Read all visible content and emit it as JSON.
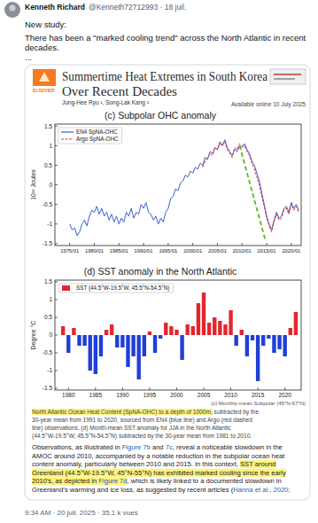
{
  "tweet": {
    "author": "Kenneth Richard",
    "handle": "@Kenneth72712993 · 18 juil.",
    "text": [
      "New study:",
      "There has been a \"marked cooling trend\" across the North Atlantic in recent",
      "decades.",
      "..."
    ],
    "footer": "9:34 AM · 20 juil. 2025 · 35,1 k vues"
  },
  "paper": {
    "publisher": "ELSEVIER",
    "title_lines": [
      "Summertime Heat Extremes in South Korea",
      "Over Recent Decades"
    ],
    "authors": "Jung-Hee Ryu ¹, Song-Lak Kang ²",
    "available": "Available online 10 July 2025",
    "figure_note": "(c) Monthly-mean Subpolar (45°N-67°N)",
    "caption": [
      [
        {
          "text": "North Atlantic Ocean Heat Content (SpNA-OHC) to a depth of 1000m,",
          "style": "highlight"
        },
        " subtracted by the"
      ],
      [
        "30-year mean from 1991 to 2020, sourced from EN4 (blue line) and Argo (red dashed"
      ],
      [
        "line) observations. (d) Month-mean SST anomaly for JJA in the North Atlantic"
      ],
      [
        "(44.5°W-19.5°W; 45.5°N-54.5°N) subtracted by the 30-year mean from 1981 to 2010."
      ]
    ],
    "body": [
      [
        "Observations, as illustrated in ",
        {
          "text": "Figure 7b",
          "style": "link"
        },
        " and ",
        {
          "text": "7c",
          "style": "link"
        },
        ", reveal a noticeable slowdown in the"
      ],
      [
        "AMOC around 2010, accompanied by a notable reduction in the subpolar ocean heat"
      ],
      [
        "content anomaly, particularly between 2010 and 2015. In this context, ",
        {
          "text": "SST around",
          "style": "highlight"
        }
      ],
      [
        {
          "text": "Greenland (44.5°W-19.5°W, 45°N-55°N) has exhibited marked cooling since the early",
          "style": "highlight"
        }
      ],
      [
        {
          "text": "2010's, as depicted in ",
          "style": "highlight"
        },
        {
          "text": "Figure 7d",
          "style": "highlight-link"
        },
        ", which is likely linked to a documented slowdown in"
      ],
      [
        "Greenland's warming and ice loss, as suggested by recent articles (",
        {
          "text": "Hanna et al., 2020;",
          "style": "link"
        }
      ]
    ]
  },
  "chart_data": [
    {
      "type": "line",
      "title": "(c) Subpolar OHC anomaly",
      "ylabel": "10²² Joules",
      "xlim": [
        1972,
        2022
      ],
      "ylim": [
        -1.55,
        1.55
      ],
      "xticks": [
        {
          "value": 1975,
          "label": "1975/01"
        },
        {
          "value": 1980,
          "label": "1980/01"
        },
        {
          "value": 1985,
          "label": "1985/01"
        },
        {
          "value": 1990,
          "label": "1990/01"
        },
        {
          "value": 1995,
          "label": "1995/01"
        },
        {
          "value": 2000,
          "label": "2000/01"
        },
        {
          "value": 2005,
          "label": "2005/01"
        },
        {
          "value": 2010,
          "label": "2010/01"
        },
        {
          "value": 2015,
          "label": "2015/01"
        },
        {
          "value": 2020,
          "label": "2020/01"
        }
      ],
      "yticks": [
        1.5,
        1,
        0.5,
        0,
        -0.5,
        -1,
        -1.5
      ],
      "grid": false,
      "legend": "upper left",
      "series": [
        {
          "name": "EN4 SpNA-OHC",
          "color": "#3b5fd0",
          "line_style": "solid",
          "x": [
            1975,
            1975.5,
            1976,
            1976.5,
            1977,
            1977.5,
            1978,
            1978.5,
            1979,
            1979.5,
            1980,
            1980.5,
            1981,
            1981.5,
            1982,
            1982.5,
            1983,
            1983.5,
            1984,
            1984.5,
            1985,
            1985.5,
            1986,
            1986.5,
            1987,
            1987.5,
            1988,
            1988.5,
            1989,
            1989.5,
            1990,
            1990.5,
            1991,
            1991.5,
            1992,
            1992.5,
            1993,
            1993.5,
            1994,
            1994.5,
            1995,
            1995.5,
            1996,
            1996.5,
            1997,
            1997.5,
            1998,
            1998.5,
            1999,
            1999.5,
            2000,
            2000.5,
            2001,
            2001.5,
            2002,
            2002.5,
            2003,
            2003.5,
            2004,
            2004.5,
            2005,
            2005.5,
            2006,
            2006.5,
            2007,
            2007.5,
            2008,
            2008.5,
            2009,
            2009.5,
            2010,
            2010.5,
            2011,
            2011.5,
            2012,
            2012.5,
            2013,
            2013.5,
            2014,
            2014.5,
            2015,
            2015.5,
            2016,
            2016.5,
            2017,
            2017.5,
            2018,
            2018.5,
            2019,
            2019.5,
            2020,
            2020.5,
            2021,
            2021.5
          ],
          "values": [
            -1.0,
            -1.15,
            -1.1,
            -1.3,
            -1.2,
            -1.0,
            -0.9,
            -1.05,
            -0.8,
            -0.65,
            -0.7,
            -0.55,
            -0.75,
            -0.6,
            -0.8,
            -0.7,
            -0.9,
            -0.75,
            -0.95,
            -0.8,
            -1.0,
            -0.85,
            -0.95,
            -0.7,
            -0.8,
            -0.6,
            -0.85,
            -0.7,
            -0.75,
            -0.5,
            -0.6,
            -0.45,
            -0.7,
            -0.75,
            -0.9,
            -0.8,
            -1.0,
            -0.85,
            -0.95,
            -0.7,
            -0.6,
            -0.35,
            -0.3,
            -0.1,
            -0.15,
            0.05,
            0.1,
            0.25,
            0.2,
            0.35,
            0.3,
            0.45,
            0.4,
            0.55,
            0.5,
            0.7,
            0.65,
            0.85,
            0.8,
            0.95,
            0.9,
            1.1,
            1.0,
            1.15,
            0.95,
            0.85,
            0.75,
            0.9,
            0.85,
            1.0,
            0.95,
            1.05,
            0.9,
            0.8,
            0.6,
            0.5,
            0.3,
            0.1,
            -0.2,
            -0.5,
            -0.8,
            -1.0,
            -1.15,
            -0.9,
            -0.7,
            -0.85,
            -0.8,
            -0.6,
            -0.55,
            -0.7,
            -0.45,
            -0.6,
            -0.5,
            -0.65
          ]
        },
        {
          "name": "Argo SpNA-OHC",
          "color": "#e0303a",
          "line_style": "dashed",
          "x": [
            2002,
            2002.5,
            2003,
            2003.5,
            2004,
            2004.5,
            2005,
            2005.5,
            2006,
            2006.5,
            2007,
            2007.5,
            2008,
            2008.5,
            2009,
            2009.5,
            2010,
            2010.5,
            2011,
            2011.5,
            2012,
            2012.5,
            2013,
            2013.5,
            2014,
            2014.5,
            2015,
            2015.5,
            2016,
            2016.5,
            2017,
            2017.5,
            2018,
            2018.5,
            2019,
            2019.5,
            2020,
            2020.5,
            2021,
            2021.5
          ],
          "values": [
            0.45,
            0.6,
            0.7,
            0.8,
            0.75,
            0.95,
            0.9,
            1.05,
            1.0,
            1.1,
            0.9,
            0.8,
            0.7,
            0.95,
            0.9,
            1.05,
            1.0,
            1.0,
            0.85,
            0.75,
            0.55,
            0.4,
            0.2,
            0.0,
            -0.3,
            -0.55,
            -0.85,
            -1.05,
            -1.2,
            -0.95,
            -0.75,
            -0.9,
            -0.85,
            -0.65,
            -0.6,
            -0.75,
            -0.5,
            -0.65,
            -0.55,
            -0.7
          ]
        },
        {
          "color": "#5cb82e",
          "line_style": "dashed",
          "x": [
            2009.5,
            2014.8
          ],
          "values": [
            1.0,
            -1.45
          ]
        }
      ]
    },
    {
      "type": "bar",
      "title": "(d) SST anomaly in the North Atlantic",
      "ylabel": "Degree °C",
      "xlim": [
        1977.5,
        2023
      ],
      "ylim": [
        -1.55,
        1.55
      ],
      "xticks": [
        1980,
        1985,
        1990,
        1995,
        2000,
        2005,
        2010,
        2015,
        2020
      ],
      "yticks": [
        1.5,
        1,
        0.5,
        0,
        -0.5,
        -1,
        -1.5
      ],
      "grid": false,
      "legend": "upper left",
      "series": [
        {
          "name": "SST (44.5°W-19.5°W, 45.5°N-54.5°N)",
          "color": "#e3262e",
          "x": [
            1979,
            1980,
            1981,
            1982,
            1983,
            1984,
            1985,
            1986,
            1987,
            1988,
            1989,
            1990,
            1991,
            1992,
            1993,
            1994,
            1995,
            1996,
            1997,
            1998,
            1999,
            2000,
            2001,
            2002,
            2003,
            2004,
            2005,
            2006,
            2007,
            2008,
            2009,
            2010,
            2011,
            2012,
            2013,
            2014,
            2015,
            2016,
            2017,
            2018,
            2019,
            2020,
            2021,
            2022
          ],
          "values": [
            0.25,
            -0.5,
            0.2,
            -0.3,
            -0.3,
            -1.0,
            -1.1,
            -0.6,
            0.15,
            0.3,
            -0.35,
            -0.35,
            -0.9,
            -0.6,
            -1.25,
            -0.6,
            0.1,
            -0.5,
            -0.1,
            0.35,
            0.25,
            0.15,
            -0.7,
            0.3,
            0.25,
            0.9,
            1.2,
            0.35,
            0.5,
            0.4,
            0.3,
            0.7,
            -0.3,
            0.15,
            -0.6,
            -0.15,
            -1.3,
            -0.3,
            -0.1,
            -0.5,
            -0.4,
            -0.6,
            0.2,
            0.65
          ],
          "colors": [
            "#e3262e",
            "#1f3fd6",
            "#e3262e",
            "#1f3fd6",
            "#1f3fd6",
            "#1f3fd6",
            "#1f3fd6",
            "#1f3fd6",
            "#e3262e",
            "#e3262e",
            "#1f3fd6",
            "#1f3fd6",
            "#1f3fd6",
            "#1f3fd6",
            "#1f3fd6",
            "#1f3fd6",
            "#e3262e",
            "#1f3fd6",
            "#1f3fd6",
            "#e3262e",
            "#e3262e",
            "#e3262e",
            "#1f3fd6",
            "#e3262e",
            "#e3262e",
            "#e3262e",
            "#e3262e",
            "#e3262e",
            "#e3262e",
            "#e3262e",
            "#e3262e",
            "#e3262e",
            "#1f3fd6",
            "#e3262e",
            "#1f3fd6",
            "#1f3fd6",
            "#1f3fd6",
            "#1f3fd6",
            "#1f3fd6",
            "#1f3fd6",
            "#1f3fd6",
            "#1f3fd6",
            "#e3262e",
            "#e3262e"
          ]
        }
      ]
    }
  ]
}
